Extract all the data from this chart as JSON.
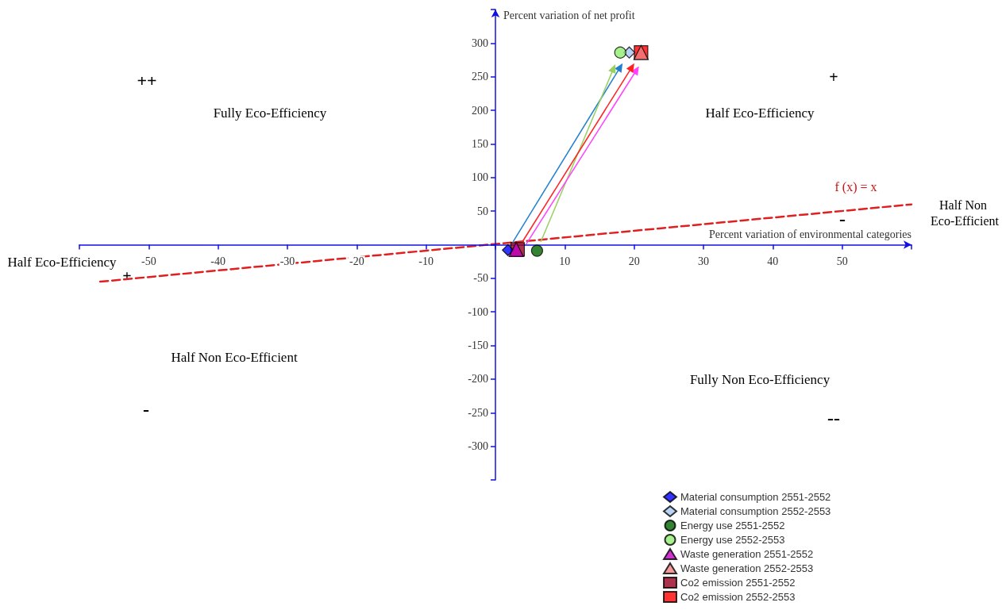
{
  "chart_data": {
    "type": "scatter",
    "xlabel": "Percent variation of environmental categories",
    "ylabel": "Percent variation of net profit",
    "xlim": [
      -60,
      60
    ],
    "xticks": [
      -50,
      -40,
      -30,
      -20,
      -10,
      10,
      20,
      30,
      40,
      50
    ],
    "ylim": [
      -350,
      350
    ],
    "yticks": [
      -300,
      -250,
      -200,
      -150,
      -100,
      -50,
      50,
      100,
      150,
      200,
      250,
      300
    ],
    "grid": false,
    "legend": "bottom right",
    "series": [
      {
        "type": "line",
        "color": "#e02020",
        "marker": "none",
        "line_style": "dashed",
        "x": [
          -57,
          60
        ],
        "values": [
          -55,
          60
        ]
      },
      {
        "name": "Material consumption 2551-2552",
        "color": "#0000ff",
        "marker": "diamond",
        "x": [
          1.8
        ],
        "values": [
          -8
        ]
      },
      {
        "name": "Material consumption 2552-2553",
        "color": "#a6c8f0",
        "marker": "diamond",
        "x": [
          19.3
        ],
        "values": [
          286
        ]
      },
      {
        "name": "Energy use 2551-2552",
        "color": "#006400",
        "marker": "circle",
        "x": [
          6
        ],
        "values": [
          -9
        ]
      },
      {
        "name": "Energy use 2552-2553",
        "color": "#90ee70",
        "marker": "circle",
        "x": [
          18
        ],
        "values": [
          286
        ]
      },
      {
        "name": "Waste generation 2551-2552",
        "color": "#c000c0",
        "marker": "triangle",
        "x": [
          3
        ],
        "values": [
          -7
        ]
      },
      {
        "name": "Waste generation 2552-2553",
        "color": "#f08080",
        "marker": "triangle",
        "x": [
          21
        ],
        "values": [
          286
        ]
      },
      {
        "name": "Co2 emission 2551-2552",
        "color": "#990020",
        "marker": "square",
        "x": [
          3.2
        ],
        "values": [
          -7
        ]
      },
      {
        "name": "Co2 emission 2552-2553",
        "color": "#ff0000",
        "marker": "square",
        "x": [
          21
        ],
        "values": [
          286
        ]
      }
    ],
    "annotations": [
      "++",
      "Fully Eco-Efficiency",
      "Half Eco-Efficiency",
      "+",
      "Half Non Eco-Efficient",
      "-",
      "Half Eco-Efficiency",
      "+",
      "Half Non Eco-Efficient",
      "-",
      "Fully Non Eco-Efficiency",
      "--",
      "f (x) = x"
    ]
  }
}
